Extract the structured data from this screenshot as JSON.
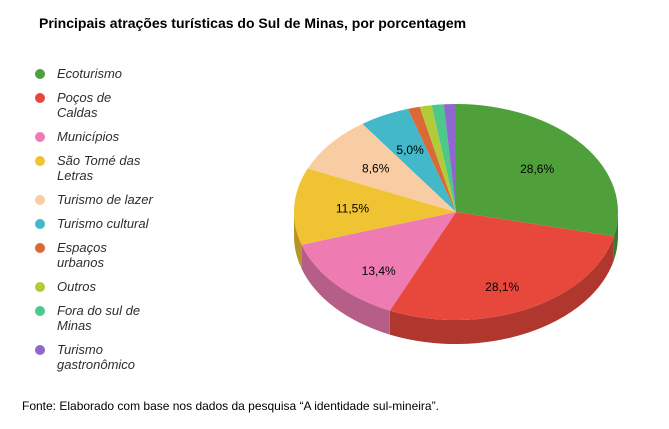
{
  "title": "Principais atrações turísticas do Sul de Minas, por porcentagem",
  "source_note": "Fonte: Elaborado com base nos dados da pesquisa “A identidade sul-mineira”.",
  "chart_data": {
    "type": "pie",
    "style": "3d",
    "title": "Principais atrações turísticas do Sul de Minas, por porcentagem",
    "legend_position": "left",
    "label_format": "percent-comma-decimal",
    "start_angle_deg": 0,
    "direction": "clockwise",
    "slices": [
      {
        "label": "Ecoturismo",
        "lines": [
          "Ecoturismo"
        ],
        "value": 28.6,
        "display": "28,6%",
        "color": "#4fa03a"
      },
      {
        "label": "Poços de Caldas",
        "lines": [
          "Poços de",
          "Caldas"
        ],
        "value": 28.1,
        "display": "28,1%",
        "color": "#e8483c"
      },
      {
        "label": "Municípios",
        "lines": [
          "Municípios"
        ],
        "value": 13.4,
        "display": "13,4%",
        "color": "#ee7cb2"
      },
      {
        "label": "São Tomé das Letras",
        "lines": [
          "São Tomé das",
          "Letras"
        ],
        "value": 11.5,
        "display": "11,5%",
        "color": "#efc331"
      },
      {
        "label": "Turismo de lazer",
        "lines": [
          "Turismo de lazer"
        ],
        "value": 8.6,
        "display": "8,6%",
        "color": "#f9cda3"
      },
      {
        "label": "Turismo cultural",
        "lines": [
          "Turismo cultural"
        ],
        "value": 5.0,
        "display": "5,0%",
        "color": "#42b8c9"
      },
      {
        "label": "Espaços urbanos",
        "lines": [
          "Espaços",
          "urbanos"
        ],
        "value": 1.2,
        "display": "",
        "color": "#d96936"
      },
      {
        "label": "Outros",
        "lines": [
          "Outros"
        ],
        "value": 1.2,
        "display": "",
        "color": "#b2cc39"
      },
      {
        "label": "Fora do sul de Minas",
        "lines": [
          "Fora do sul de",
          "Minas"
        ],
        "value": 1.2,
        "display": "",
        "color": "#4cc88b"
      },
      {
        "label": "Turismo gastronômico",
        "lines": [
          "Turismo",
          "gastronômico"
        ],
        "value": 1.2,
        "display": "",
        "color": "#8e68ce"
      }
    ]
  }
}
